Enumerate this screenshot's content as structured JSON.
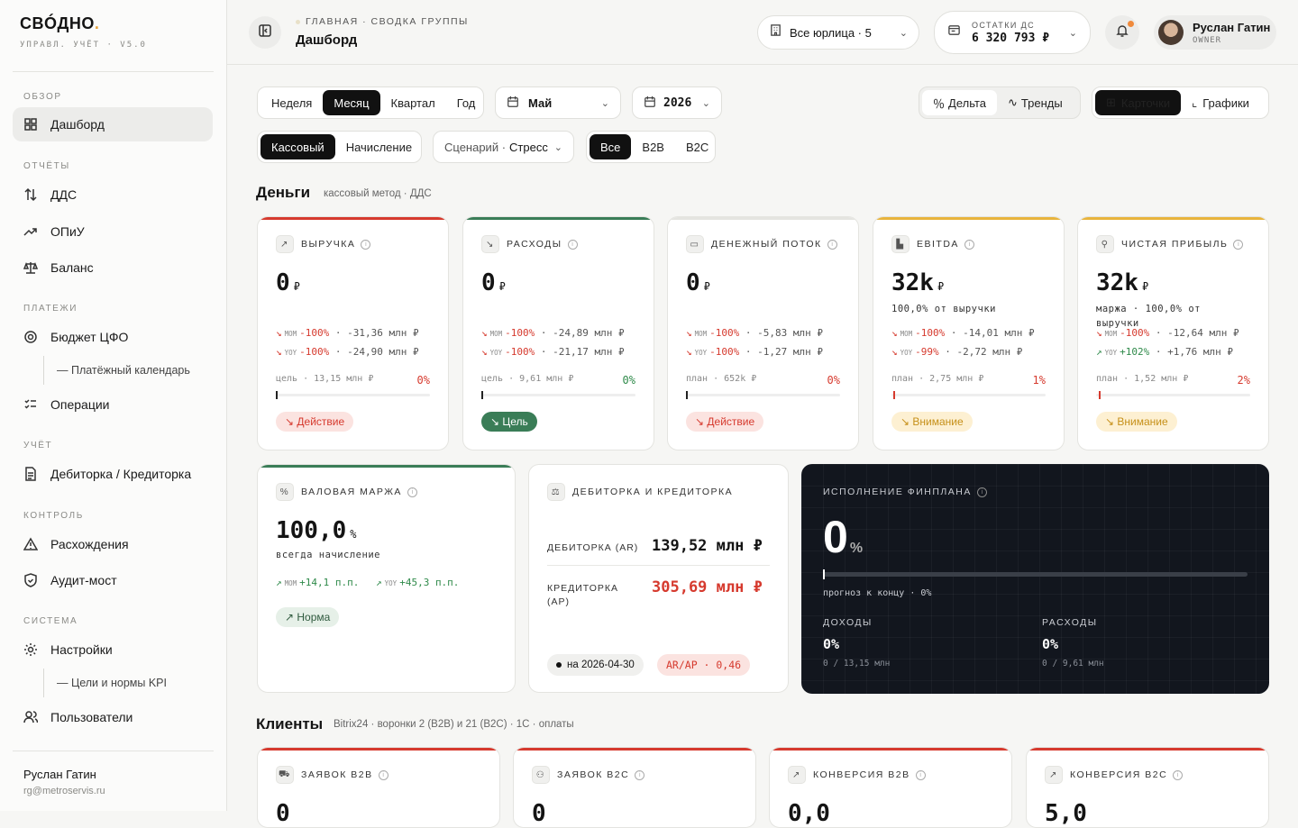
{
  "brand": {
    "name": "СВÓДНО",
    "dot": ".",
    "sub": "УПРАВЛ. УЧЁТ · V5.0"
  },
  "sidebar": {
    "sections": [
      "ОБЗОР",
      "ОТЧЁТЫ",
      "ПЛАТЕЖИ",
      "УЧЁТ",
      "КОНТРОЛЬ",
      "СИСТЕМА"
    ],
    "items": [
      {
        "label": "Дашборд",
        "icon": "grid-icon"
      },
      {
        "label": "ДДС",
        "icon": "arrows-updown-icon"
      },
      {
        "label": "ОПиУ",
        "icon": "trend-up-icon"
      },
      {
        "label": "Баланс",
        "icon": "scales-icon"
      },
      {
        "label": "Бюджет ЦФО",
        "icon": "target-icon"
      },
      {
        "label": "— Платёжный календарь"
      },
      {
        "label": "Операции",
        "icon": "checklist-icon"
      },
      {
        "label": "Дебиторка / Кредиторка",
        "icon": "document-icon"
      },
      {
        "label": "Расхождения",
        "icon": "warning-icon"
      },
      {
        "label": "Аудит-мост",
        "icon": "shield-icon"
      },
      {
        "label": "Настройки",
        "icon": "gear-icon"
      },
      {
        "label": "— Цели и нормы KPI"
      },
      {
        "label": "Пользователи",
        "icon": "users-icon"
      }
    ],
    "user": {
      "name": "Руслан Гатин",
      "email": "rg@metroservis.ru"
    }
  },
  "topbar": {
    "breadcrumb": "ГЛАВНАЯ · СВОДКА ГРУППЫ",
    "title": "Дашборд",
    "entity": "Все юрлица · 5",
    "cash_label": "ОСТАТКИ ДС",
    "cash_value": "6 320 793 ₽",
    "user_name": "Руслан Гатин",
    "user_role": "OWNER"
  },
  "filters": {
    "periods": [
      "Неделя",
      "Месяц",
      "Квартал",
      "Год"
    ],
    "month": "Май",
    "year": "2026",
    "modes": [
      "Дельта",
      "Тренды"
    ],
    "views": [
      "Карточки",
      "Графики"
    ],
    "methods": [
      "Кассовый",
      "Начисление"
    ],
    "scenario_label": "Сценарий ·",
    "scenario": "Стресс",
    "segments": [
      "Все",
      "B2B",
      "B2C"
    ]
  },
  "money": {
    "title": "Деньги",
    "sub": "кассовый метод · ДДС"
  },
  "cards": [
    {
      "title": "ВЫРУЧКА",
      "value": "0",
      "unit": "₽",
      "sub": "",
      "mom": "-100%",
      "mom_abs": "· -31,36 млн ₽",
      "yoy": "-100%",
      "yoy_abs": "· -24,90 млн ₽",
      "goal": "цель · 13,15 млн ₽",
      "pct": "0%",
      "badge": "↘ Действие"
    },
    {
      "title": "РАСХОДЫ",
      "value": "0",
      "unit": "₽",
      "sub": "",
      "mom": "-100%",
      "mom_abs": "· -24,89 млн ₽",
      "yoy": "-100%",
      "yoy_abs": "· -21,17 млн ₽",
      "goal": "цель · 9,61 млн ₽",
      "pct": "0%",
      "badge": "↘ Цель"
    },
    {
      "title": "ДЕНЕЖНЫЙ ПОТОК",
      "value": "0",
      "unit": "₽",
      "sub": "",
      "mom": "-100%",
      "mom_abs": "· -5,83 млн ₽",
      "yoy": "-100%",
      "yoy_abs": "· -1,27 млн ₽",
      "goal": "план · 652k ₽",
      "pct": "0%",
      "badge": "↘ Действие"
    },
    {
      "title": "EBITDA",
      "value": "32k",
      "unit": "₽",
      "sub": "100,0% от выручки",
      "mom": "-100%",
      "mom_abs": "· -14,01 млн ₽",
      "yoy": "-99%",
      "yoy_abs": "· -2,72 млн ₽",
      "goal": "план · 2,75 млн ₽",
      "pct": "1%",
      "badge": "↘ Внимание"
    },
    {
      "title": "ЧИСТАЯ ПРИБЫЛЬ",
      "value": "32k",
      "unit": "₽",
      "sub": "маржа · 100,0% от выручки",
      "mom": "-100%",
      "mom_abs": "· -12,64 млн ₽",
      "yoy": "+102%",
      "yoy_abs": "· +1,76 млн ₽",
      "goal": "план · 1,52 млн ₽",
      "pct": "2%",
      "badge": "↘ Внимание"
    }
  ],
  "margin": {
    "title": "ВАЛОВАЯ МАРЖА",
    "value": "100,0",
    "unit": "%",
    "sub": "всегда начисление",
    "mom": "+14,1 п.п.",
    "yoy": "+45,3 п.п.",
    "badge": "↗ Норма"
  },
  "arap": {
    "title": "ДЕБИТОРКА И КРЕДИТОРКА",
    "ar_label": "ДЕБИТОРКА (AR)",
    "ar_value": "139,52 млн ₽",
    "ap_label": "КРЕДИТОРКА (AP)",
    "ap_value": "305,69 млн ₽",
    "date": "на 2026-04-30",
    "ratio": "AR/AP · 0,46"
  },
  "plan": {
    "title": "ИСПОЛНЕНИЕ ФИНПЛАНА",
    "value": "0",
    "unit": "%",
    "progress": 0,
    "forecast": "прогноз к концу · 0%",
    "inc_label": "ДОХОДЫ",
    "inc_value": "0%",
    "inc_sub": "0 / 13,15 млн",
    "exp_label": "РАСХОДЫ",
    "exp_value": "0%",
    "exp_sub": "0 / 9,61 млн"
  },
  "clients": {
    "title": "Клиенты",
    "sub": "Bitrix24 · воронки 2 (B2B) и 21 (B2C) · 1С · оплаты",
    "cards": [
      {
        "title": "ЗАЯВОК B2B",
        "value": "0"
      },
      {
        "title": "ЗАЯВОК B2C",
        "value": "0"
      },
      {
        "title": "КОНВЕРСИЯ B2B",
        "value": "0,0"
      },
      {
        "title": "КОНВЕРСИЯ B2C",
        "value": "5,0"
      }
    ]
  },
  "colors": {
    "red": "#d63a2e",
    "green": "#2f8a4a",
    "yellow": "#e8b43c",
    "dark": "#12161e"
  }
}
